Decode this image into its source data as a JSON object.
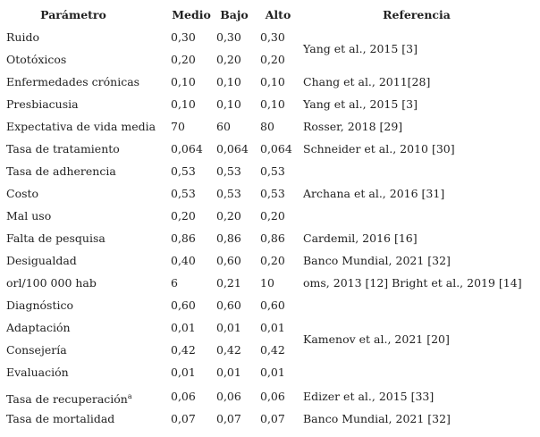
{
  "table": {
    "header": [
      "Parámetro",
      "Medio",
      "Bajo",
      "Alto",
      "Referencia"
    ],
    "rows": [
      {
        "parametro": "Ruido",
        "medio": "0,30",
        "bajo": "0,30",
        "alto": "0,30",
        "referencia": "Yang et al., 2015 [3]"
      },
      {
        "parametro": "Ototóxicos",
        "medio": "0,20",
        "bajo": "0,20",
        "alto": "0,20"
      },
      {
        "parametro": "Enfermedades crónicas",
        "medio": "0,10",
        "bajo": "0,10",
        "alto": "0,10",
        "referencia": "Chang et al., 2011[28]"
      },
      {
        "parametro": "Presbiacusia",
        "medio": "0,10",
        "bajo": "0,10",
        "alto": "0,10",
        "referencia": "Yang et al., 2015 [3]"
      },
      {
        "parametro": "Expectativa de vida media",
        "medio": "70",
        "bajo": "60",
        "alto": "80",
        "referencia": "Rosser, 2018 [29]"
      },
      {
        "parametro": "Tasa de tratamiento",
        "medio": "0,064",
        "bajo": "0,064",
        "alto": "0,064",
        "referencia": "Schneider et al., 2010 [30]"
      },
      {
        "parametro": "Tasa de adherencia",
        "medio": "0,53",
        "bajo": "0,53",
        "alto": "0,53"
      },
      {
        "parametro": "Costo",
        "medio": "0,53",
        "bajo": "0,53",
        "alto": "0,53",
        "referencia": "Archana et al., 2016 [31]"
      },
      {
        "parametro": "Mal uso",
        "medio": "0,20",
        "bajo": "0,20",
        "alto": "0,20"
      },
      {
        "parametro": "Falta de pesquisa",
        "medio": "0,86",
        "bajo": "0,86",
        "alto": "0,86",
        "referencia": "Cardemil, 2016 [16]"
      },
      {
        "parametro": "Desigualdad",
        "medio": "0,40",
        "bajo": "0,60",
        "alto": "0,20",
        "referencia": "Banco Mundial, 2021 [32]"
      },
      {
        "parametro": "orl/100 000 hab",
        "medio": "6",
        "bajo": "0,21",
        "alto": "10",
        "referencia": "oms, 2013 [12] Bright et al., 2019 [14]"
      },
      {
        "parametro": "Diagnóstico",
        "medio": "0,60",
        "bajo": "0,60",
        "alto": "0,60",
        "referencia": "Kamenov et al., 2021 [20]"
      },
      {
        "parametro": "Adaptación",
        "medio": "0,01",
        "bajo": "0,01",
        "alto": "0,01"
      },
      {
        "parametro": "Consejería",
        "medio": "0,42",
        "bajo": "0,42",
        "alto": "0,42"
      },
      {
        "parametro": "Evaluación",
        "medio": "0,01",
        "bajo": "0,01",
        "alto": "0,01"
      },
      {
        "parametro": "Tasa de recuperación",
        "nota": "a",
        "medio": "0,06",
        "bajo": "0,06",
        "alto": "0,06",
        "referencia": "Edizer et al., 2015 [33]"
      },
      {
        "parametro": "Tasa de mortalidad",
        "medio": "0,07",
        "bajo": "0,07",
        "alto": "0,07",
        "referencia": "Banco Mundial, 2021 [32]"
      }
    ]
  }
}
